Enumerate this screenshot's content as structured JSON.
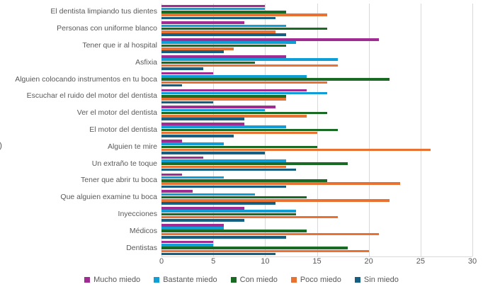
{
  "chart_data": {
    "type": "bar",
    "orientation": "horizontal",
    "title": "",
    "xlabel": "",
    "ylabel": "",
    "xlim": [
      0,
      30
    ],
    "x_ticks": [
      0,
      5,
      10,
      15,
      20,
      25,
      30
    ],
    "grid": "vertical",
    "legend_position": "bottom",
    "bar_order_top_to_bottom": [
      "Mucho miedo",
      "Bastante miedo",
      "Con miedo",
      "Poco miedo",
      "Sin miedo"
    ],
    "categories": [
      "El dentista limpiando tus dientes",
      "Personas con uniforme blanco",
      "Tener que ir al hospital",
      "Asfixia",
      "Alguien colocando instrumentos en tu boca",
      "Escuchar el ruido del motor del dentista",
      "Ver el motor del dentista",
      "El motor del dentista",
      "Alguien te mire",
      "Un extraño te toque",
      "Tener que abrir tu boca",
      "Que alguien examine tu boca",
      "Inyecciones",
      "Médicos",
      "Dentistas"
    ],
    "series": [
      {
        "name": "Mucho miedo",
        "color": "#A02B93",
        "values": [
          10,
          8,
          21,
          12,
          5,
          14,
          11,
          8,
          2,
          4,
          2,
          3,
          8,
          6,
          5
        ]
      },
      {
        "name": "Bastante miedo",
        "color": "#0F9ED5",
        "values": [
          10,
          12,
          13,
          17,
          14,
          16,
          10,
          12,
          6,
          12,
          6,
          9,
          13,
          6,
          5
        ]
      },
      {
        "name": "Con miedo",
        "color": "#196B24",
        "values": [
          12,
          16,
          12,
          9,
          22,
          12,
          16,
          17,
          15,
          18,
          16,
          14,
          13,
          14,
          18
        ]
      },
      {
        "name": "Poco miedo",
        "color": "#E97132",
        "values": [
          16,
          11,
          7,
          17,
          16,
          12,
          14,
          15,
          26,
          12,
          23,
          22,
          17,
          21,
          20
        ]
      },
      {
        "name": "Sin miedo",
        "color": "#156082",
        "values": [
          11,
          12,
          6,
          4,
          2,
          5,
          8,
          7,
          10,
          13,
          12,
          11,
          8,
          12,
          11
        ]
      }
    ]
  },
  "y_axis": {
    "fragment": ")"
  },
  "colors": {
    "grid": "#D9D9D9",
    "text": "#595959",
    "background": "#FFFFFF"
  }
}
